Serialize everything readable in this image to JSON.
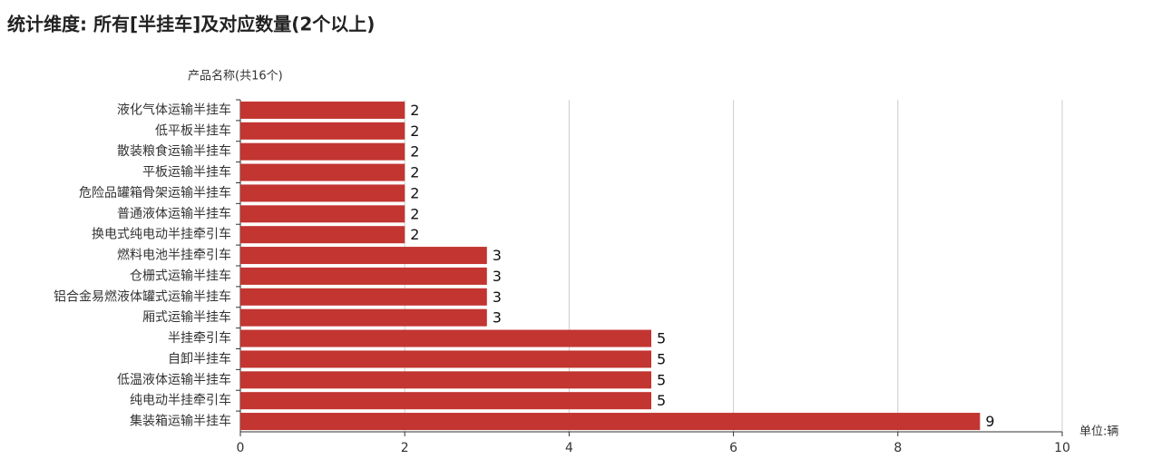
{
  "chart_data": {
    "type": "hbar",
    "title": "统计维度: 所有[半挂车]及对应数量(2个以上)",
    "y_axis_label": "产品名称(共16个)",
    "unit_label": "单位:辆",
    "categories": [
      "液化气体运输半挂车",
      "低平板半挂车",
      "散装粮食运输半挂车",
      "平板运输半挂车",
      "危险品罐箱骨架运输半挂车",
      "普通液体运输半挂车",
      "换电式纯电动半挂牵引车",
      "燃料电池半挂牵引车",
      "仓栅式运输半挂车",
      "铝合金易燃液体罐式运输半挂车",
      "厢式运输半挂车",
      "半挂牵引车",
      "自卸半挂车",
      "低温液体运输半挂车",
      "纯电动半挂牵引车",
      "集装箱运输半挂车"
    ],
    "values": [
      2,
      2,
      2,
      2,
      2,
      2,
      2,
      3,
      3,
      3,
      3,
      5,
      5,
      5,
      5,
      9
    ],
    "color": "#c23531",
    "xlim": [
      0,
      10
    ],
    "xticks": [
      0,
      2,
      4,
      6,
      8,
      10
    ],
    "grid": true
  }
}
